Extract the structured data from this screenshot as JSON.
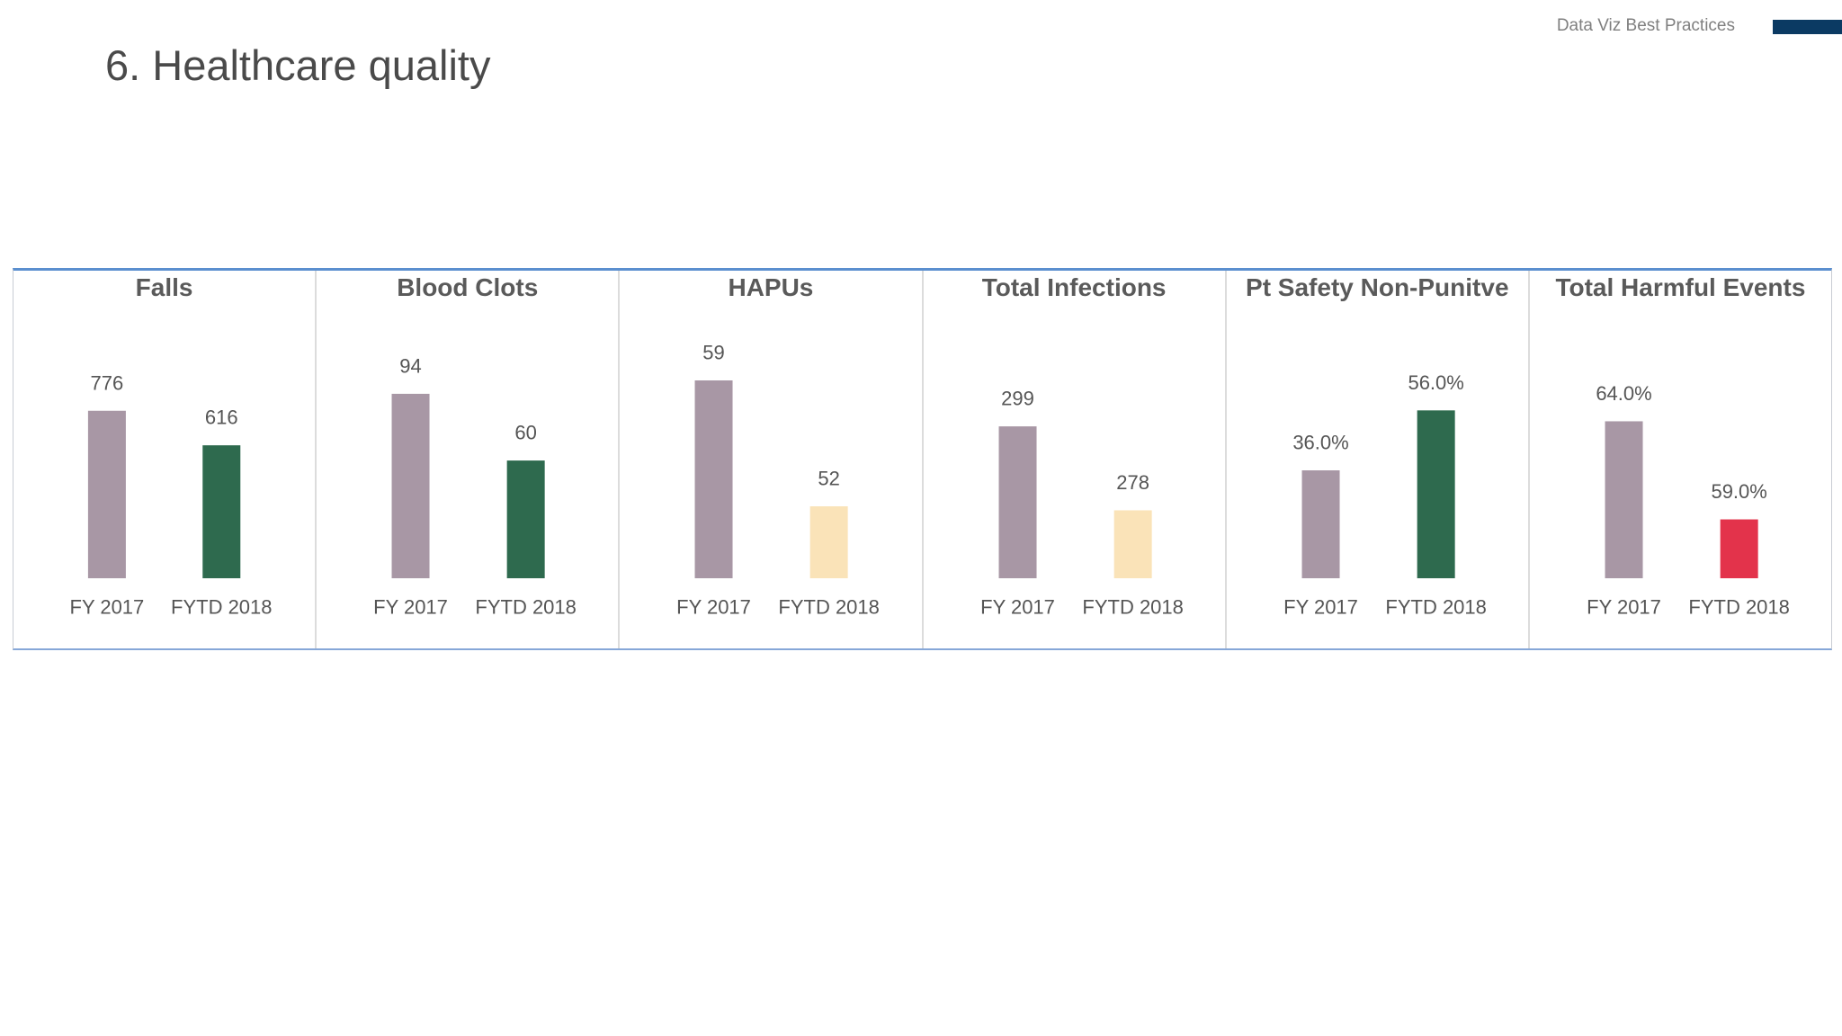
{
  "header": {
    "deck_title": "Data Viz Best Practices",
    "accent_color": "#0b3a63"
  },
  "slide": {
    "title": "6. Healthcare quality"
  },
  "chart_data": [
    {
      "type": "bar",
      "title": "Falls",
      "categories": [
        "FY 2017",
        "FYTD 2018"
      ],
      "values": [
        776,
        616
      ],
      "data_labels": [
        "776",
        "616"
      ],
      "colors": [
        "#a897a5",
        "#2e6a4e"
      ],
      "ylim": [
        0,
        1000
      ],
      "grid": false,
      "show_legend": false
    },
    {
      "type": "bar",
      "title": "Blood Clots",
      "categories": [
        "FY 2017",
        "FYTD 2018"
      ],
      "values": [
        94,
        60
      ],
      "data_labels": [
        "94",
        "60"
      ],
      "colors": [
        "#a897a5",
        "#2e6a4e"
      ],
      "ylim": [
        0,
        110
      ],
      "grid": false,
      "show_legend": false
    },
    {
      "type": "bar",
      "title": "HAPUs",
      "categories": [
        "FY 2017",
        "FYTD 2018"
      ],
      "values": [
        59,
        52
      ],
      "data_labels": [
        "59",
        "52"
      ],
      "colors": [
        "#a897a5",
        "#fae3b8"
      ],
      "ylim": [
        48,
        60
      ],
      "grid": false,
      "show_legend": false
    },
    {
      "type": "bar",
      "title": "Total Infections",
      "categories": [
        "FY 2017",
        "FYTD 2018"
      ],
      "values": [
        299,
        278
      ],
      "data_labels": [
        "299",
        "278"
      ],
      "colors": [
        "#a897a5",
        "#fae3b8"
      ],
      "ylim": [
        261,
        315
      ],
      "grid": false,
      "show_legend": false
    },
    {
      "type": "bar",
      "title": "Pt Safety Non-Punitve",
      "categories": [
        "FY 2017",
        "FYTD 2018"
      ],
      "values": [
        36.0,
        56.0
      ],
      "data_labels": [
        "36.0%",
        "56.0%"
      ],
      "colors": [
        "#a897a5",
        "#2e6a4e"
      ],
      "ylim": [
        0,
        72
      ],
      "grid": false,
      "show_legend": false
    },
    {
      "type": "bar",
      "title": "Total Harmful Events",
      "categories": [
        "FY 2017",
        "FYTD 2018"
      ],
      "values": [
        64.0,
        59.0
      ],
      "data_labels": [
        "64.0%",
        "59.0%"
      ],
      "colors": [
        "#a897a5",
        "#e3334b"
      ],
      "ylim": [
        56,
        67
      ],
      "grid": false,
      "show_legend": false
    }
  ]
}
